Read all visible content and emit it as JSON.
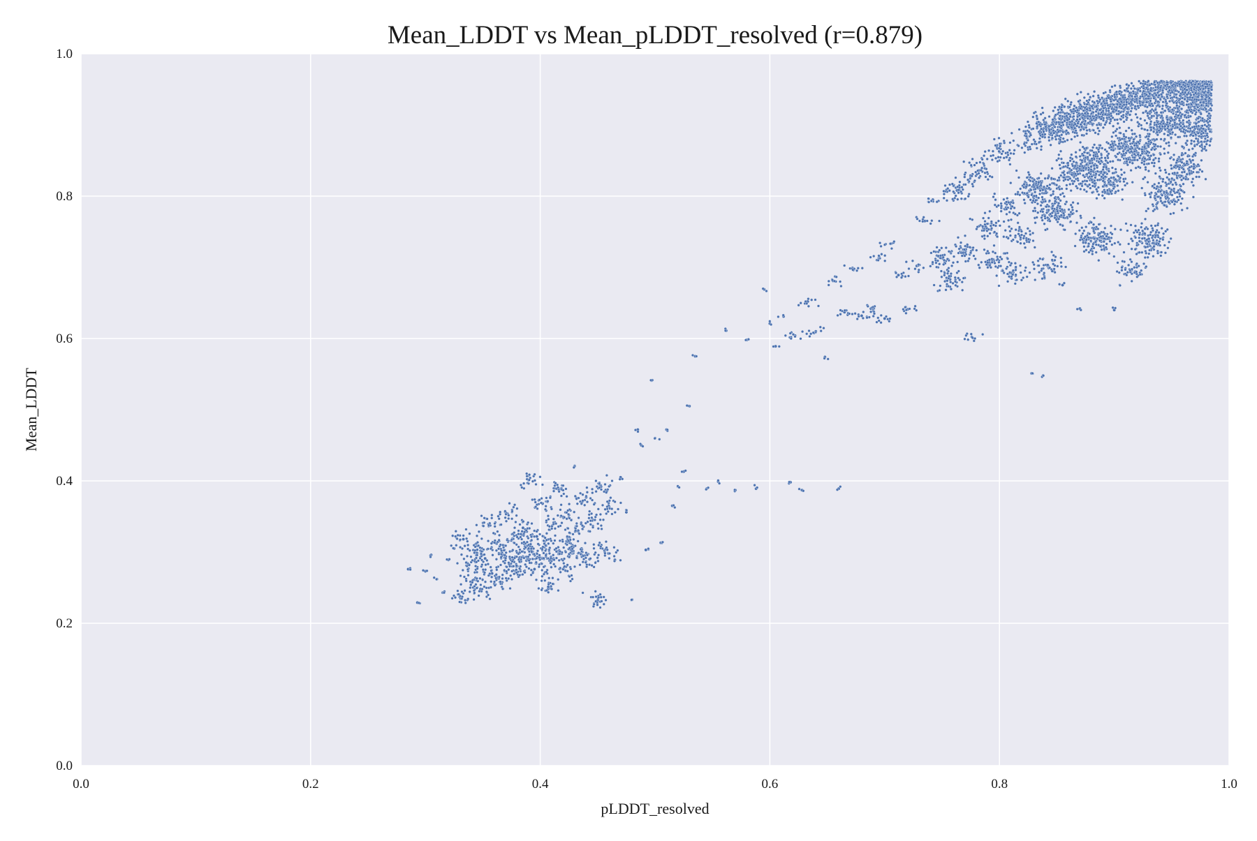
{
  "chart_data": {
    "type": "scatter",
    "title": "Mean_LDDT vs Mean_pLDDT_resolved (r=0.879)",
    "xlabel": "pLDDT_resolved",
    "ylabel": "Mean_LDDT",
    "xlim": [
      0.0,
      1.0
    ],
    "ylim": [
      0.0,
      1.0
    ],
    "xticks": [
      "0.0",
      "0.2",
      "0.4",
      "0.6",
      "0.8",
      "1.0"
    ],
    "yticks": [
      "0.0",
      "0.2",
      "0.4",
      "0.6",
      "0.8",
      "1.0"
    ],
    "grid": true,
    "marker_color": "#4c72b0",
    "background_color": "#eaeaf2",
    "series": [
      {
        "name": "",
        "points": [
          [
            0.285,
            0.276
          ],
          [
            0.293,
            0.229
          ],
          [
            0.3,
            0.273
          ],
          [
            0.305,
            0.296
          ],
          [
            0.31,
            0.262
          ],
          [
            0.315,
            0.243
          ],
          [
            0.32,
            0.289
          ],
          [
            0.325,
            0.305
          ],
          [
            0.33,
            0.237
          ],
          [
            0.333,
            0.318
          ],
          [
            0.338,
            0.282
          ],
          [
            0.342,
            0.261
          ],
          [
            0.345,
            0.303
          ],
          [
            0.348,
            0.248
          ],
          [
            0.352,
            0.291
          ],
          [
            0.355,
            0.339
          ],
          [
            0.358,
            0.27
          ],
          [
            0.362,
            0.312
          ],
          [
            0.365,
            0.258
          ],
          [
            0.368,
            0.296
          ],
          [
            0.37,
            0.355
          ],
          [
            0.373,
            0.283
          ],
          [
            0.376,
            0.319
          ],
          [
            0.379,
            0.271
          ],
          [
            0.382,
            0.299
          ],
          [
            0.385,
            0.334
          ],
          [
            0.388,
            0.288
          ],
          [
            0.39,
            0.401
          ],
          [
            0.392,
            0.304
          ],
          [
            0.395,
            0.276
          ],
          [
            0.397,
            0.322
          ],
          [
            0.4,
            0.292
          ],
          [
            0.402,
            0.368
          ],
          [
            0.405,
            0.309
          ],
          [
            0.407,
            0.251
          ],
          [
            0.41,
            0.288
          ],
          [
            0.412,
            0.34
          ],
          [
            0.415,
            0.301
          ],
          [
            0.418,
            0.389
          ],
          [
            0.42,
            0.276
          ],
          [
            0.423,
            0.315
          ],
          [
            0.425,
            0.352
          ],
          [
            0.428,
            0.298
          ],
          [
            0.43,
            0.421
          ],
          [
            0.433,
            0.33
          ],
          [
            0.436,
            0.305
          ],
          [
            0.44,
            0.377
          ],
          [
            0.443,
            0.29
          ],
          [
            0.446,
            0.345
          ],
          [
            0.45,
            0.232
          ],
          [
            0.453,
            0.392
          ],
          [
            0.456,
            0.302
          ],
          [
            0.46,
            0.364
          ],
          [
            0.465,
            0.289
          ],
          [
            0.47,
            0.405
          ],
          [
            0.475,
            0.356
          ],
          [
            0.48,
            0.233
          ],
          [
            0.485,
            0.472
          ],
          [
            0.488,
            0.45
          ],
          [
            0.492,
            0.303
          ],
          [
            0.497,
            0.541
          ],
          [
            0.5,
            0.46
          ],
          [
            0.505,
            0.313
          ],
          [
            0.51,
            0.472
          ],
          [
            0.515,
            0.365
          ],
          [
            0.52,
            0.392
          ],
          [
            0.525,
            0.413
          ],
          [
            0.53,
            0.505
          ],
          [
            0.535,
            0.575
          ],
          [
            0.545,
            0.389
          ],
          [
            0.555,
            0.399
          ],
          [
            0.562,
            0.611
          ],
          [
            0.57,
            0.387
          ],
          [
            0.58,
            0.598
          ],
          [
            0.588,
            0.389
          ],
          [
            0.595,
            0.669
          ],
          [
            0.6,
            0.621
          ],
          [
            0.605,
            0.589
          ],
          [
            0.612,
            0.631
          ],
          [
            0.618,
            0.398
          ],
          [
            0.622,
            0.604
          ],
          [
            0.628,
            0.387
          ],
          [
            0.633,
            0.652
          ],
          [
            0.64,
            0.61
          ],
          [
            0.648,
            0.574
          ],
          [
            0.655,
            0.681
          ],
          [
            0.66,
            0.389
          ],
          [
            0.665,
            0.637
          ],
          [
            0.672,
            0.699
          ],
          [
            0.68,
            0.632
          ],
          [
            0.688,
            0.642
          ],
          [
            0.695,
            0.713
          ],
          [
            0.7,
            0.628
          ],
          [
            0.705,
            0.733
          ],
          [
            0.712,
            0.689
          ],
          [
            0.72,
            0.641
          ],
          [
            0.728,
            0.702
          ],
          [
            0.735,
            0.765
          ],
          [
            0.742,
            0.795
          ],
          [
            0.75,
            0.713
          ],
          [
            0.757,
            0.683
          ],
          [
            0.763,
            0.808
          ],
          [
            0.77,
            0.724
          ],
          [
            0.776,
            0.602
          ],
          [
            0.782,
            0.836
          ],
          [
            0.788,
            0.757
          ],
          [
            0.795,
            0.709
          ],
          [
            0.8,
            0.862
          ],
          [
            0.806,
            0.784
          ],
          [
            0.812,
            0.693
          ],
          [
            0.818,
            0.744
          ],
          [
            0.824,
            0.881
          ],
          [
            0.828,
            0.551
          ],
          [
            0.833,
            0.812
          ],
          [
            0.838,
            0.548
          ],
          [
            0.842,
            0.702
          ],
          [
            0.846,
            0.895
          ],
          [
            0.85,
            0.78
          ],
          [
            0.855,
            0.675
          ],
          [
            0.86,
            0.905
          ],
          [
            0.865,
            0.831
          ],
          [
            0.87,
            0.642
          ],
          [
            0.875,
            0.915
          ],
          [
            0.88,
            0.851
          ],
          [
            0.885,
            0.74
          ],
          [
            0.89,
            0.92
          ],
          [
            0.895,
            0.822
          ],
          [
            0.9,
            0.64
          ],
          [
            0.905,
            0.931
          ],
          [
            0.91,
            0.872
          ],
          [
            0.915,
            0.696
          ],
          [
            0.92,
            0.936
          ],
          [
            0.925,
            0.861
          ],
          [
            0.93,
            0.74
          ],
          [
            0.935,
            0.944
          ],
          [
            0.94,
            0.897
          ],
          [
            0.945,
            0.801
          ],
          [
            0.95,
            0.951
          ],
          [
            0.955,
            0.911
          ],
          [
            0.96,
            0.842
          ],
          [
            0.965,
            0.956
          ],
          [
            0.97,
            0.93
          ],
          [
            0.975,
            0.89
          ],
          [
            0.978,
            0.958
          ],
          [
            0.98,
            0.94
          ]
        ]
      }
    ]
  }
}
